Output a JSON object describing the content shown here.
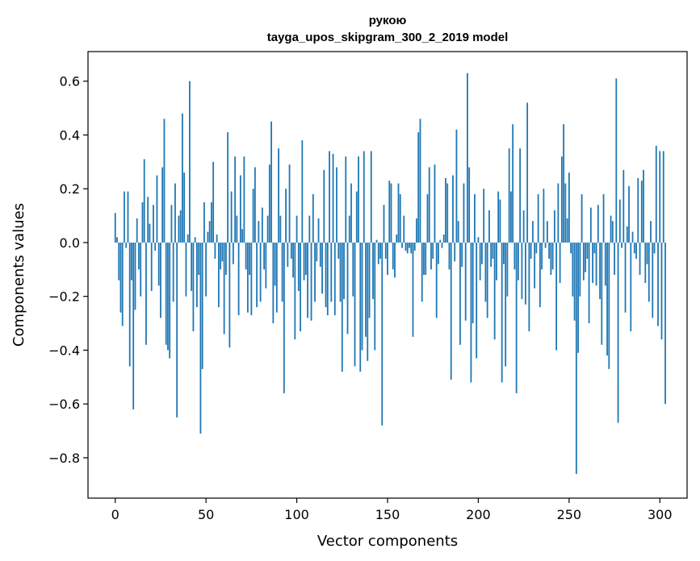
{
  "chart_data": {
    "type": "bar",
    "title_line1": "рукою",
    "title_line2": "tayga_upos_skipgram_300_2_2019 model",
    "xlabel": "Vector components",
    "ylabel": "Components values",
    "xlim": [
      -15,
      315
    ],
    "ylim": [
      -0.95,
      0.71
    ],
    "xticks": [
      0,
      50,
      100,
      150,
      200,
      250,
      300
    ],
    "xtick_labels": [
      "0",
      "50",
      "100",
      "150",
      "200",
      "250",
      "300"
    ],
    "yticks": [
      -0.8,
      -0.6,
      -0.4,
      -0.2,
      0.0,
      0.2,
      0.4,
      0.6
    ],
    "ytick_labels": [
      "−0.8",
      "−0.6",
      "−0.4",
      "−0.2",
      "0.0",
      "0.2",
      "0.4",
      "0.6"
    ],
    "bar_color": "#1f77b4",
    "values": [
      0.11,
      0.02,
      -0.14,
      -0.26,
      -0.31,
      0.19,
      -0.02,
      0.19,
      -0.46,
      -0.14,
      -0.62,
      -0.25,
      0.09,
      -0.1,
      -0.2,
      0.15,
      0.31,
      -0.38,
      0.17,
      0.07,
      -0.18,
      0.14,
      -0.03,
      0.25,
      -0.16,
      -0.28,
      0.28,
      0.46,
      -0.38,
      -0.4,
      -0.43,
      0.14,
      -0.22,
      0.22,
      -0.65,
      0.1,
      0.12,
      0.48,
      0.26,
      -0.2,
      0.03,
      0.6,
      -0.18,
      -0.33,
      0.02,
      -0.24,
      -0.12,
      -0.71,
      -0.47,
      0.15,
      -0.2,
      0.04,
      0.08,
      0.15,
      0.3,
      -0.06,
      0.03,
      -0.24,
      -0.1,
      -0.07,
      -0.34,
      -0.12,
      0.41,
      -0.39,
      0.19,
      -0.08,
      0.32,
      0.1,
      -0.27,
      0.25,
      0.05,
      0.32,
      -0.1,
      -0.26,
      -0.12,
      -0.27,
      0.2,
      0.28,
      -0.24,
      0.08,
      -0.22,
      0.13,
      -0.1,
      -0.17,
      0.1,
      0.29,
      0.45,
      -0.3,
      -0.16,
      -0.26,
      0.35,
      0.1,
      -0.22,
      -0.56,
      0.2,
      -0.09,
      0.29,
      -0.06,
      -0.13,
      -0.36,
      0.1,
      -0.18,
      -0.33,
      0.38,
      -0.14,
      -0.12,
      -0.28,
      0.1,
      -0.29,
      0.18,
      -0.22,
      -0.07,
      0.09,
      -0.09,
      -0.19,
      0.27,
      -0.24,
      -0.27,
      0.34,
      -0.22,
      0.33,
      -0.27,
      0.28,
      -0.06,
      -0.22,
      -0.48,
      -0.21,
      0.32,
      -0.34,
      0.1,
      0.22,
      -0.2,
      -0.46,
      0.19,
      0.32,
      -0.48,
      -0.4,
      0.34,
      -0.35,
      -0.44,
      -0.28,
      0.34,
      -0.21,
      -0.4,
      0.01,
      -0.08,
      -0.06,
      -0.68,
      0.14,
      -0.06,
      -0.12,
      0.23,
      0.22,
      -0.1,
      -0.13,
      0.03,
      0.22,
      0.18,
      -0.02,
      0.1,
      -0.03,
      -0.04,
      -0.02,
      -0.04,
      -0.35,
      -0.03,
      0.09,
      0.41,
      0.46,
      -0.22,
      -0.12,
      -0.12,
      0.18,
      0.28,
      -0.1,
      -0.06,
      0.29,
      -0.28,
      -0.08,
      0.01,
      -0.02,
      0.03,
      0.24,
      0.22,
      -0.1,
      -0.51,
      0.25,
      -0.07,
      0.42,
      0.08,
      -0.38,
      -0.09,
      0.22,
      -0.29,
      0.63,
      0.28,
      -0.52,
      -0.3,
      0.18,
      -0.43,
      0.02,
      -0.14,
      -0.08,
      0.2,
      -0.22,
      -0.28,
      0.12,
      -0.09,
      -0.06,
      -0.36,
      -0.14,
      0.19,
      0.16,
      -0.52,
      -0.08,
      -0.46,
      -0.2,
      0.35,
      0.19,
      0.44,
      -0.1,
      -0.56,
      -0.14,
      0.35,
      -0.21,
      0.12,
      -0.23,
      0.52,
      -0.33,
      -0.06,
      0.08,
      -0.17,
      -0.04,
      0.18,
      -0.24,
      -0.1,
      0.2,
      -0.02,
      0.08,
      -0.06,
      -0.12,
      -0.1,
      0.12,
      -0.4,
      0.22,
      -0.15,
      0.32,
      0.44,
      0.22,
      0.09,
      0.26,
      -0.04,
      -0.2,
      -0.29,
      -0.86,
      -0.41,
      -0.2,
      0.18,
      -0.14,
      -0.11,
      -0.06,
      -0.3,
      0.13,
      -0.15,
      -0.04,
      -0.16,
      0.14,
      -0.21,
      -0.38,
      0.18,
      -0.16,
      -0.42,
      -0.47,
      0.1,
      0.08,
      -0.12,
      0.61,
      -0.67,
      0.16,
      -0.02,
      0.27,
      -0.26,
      0.06,
      0.21,
      -0.33,
      0.04,
      -0.04,
      -0.06,
      0.24,
      -0.12,
      0.23,
      0.27,
      -0.15,
      -0.08,
      -0.22,
      0.08,
      -0.28,
      -0.04,
      0.36,
      -0.31,
      0.34,
      -0.36,
      0.34,
      -0.6
    ]
  }
}
